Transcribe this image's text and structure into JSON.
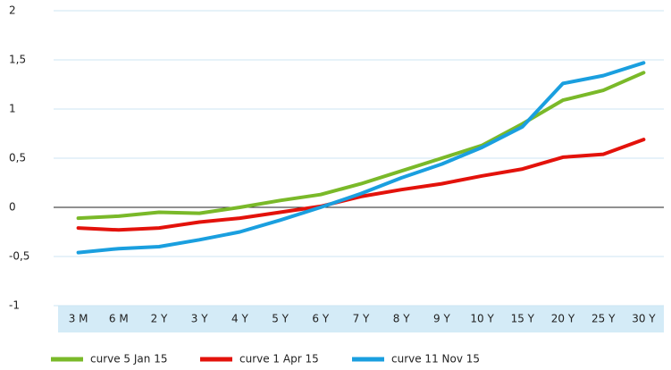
{
  "chart_data": {
    "type": "line",
    "categories": [
      "3 M",
      "6 M",
      "2 Y",
      "3 Y",
      "4 Y",
      "5 Y",
      "6 Y",
      "7 Y",
      "8 Y",
      "9 Y",
      "10 Y",
      "15 Y",
      "20 Y",
      "25 Y",
      "30 Y"
    ],
    "series": [
      {
        "name": "curve 5 Jan 15",
        "color": "#7ab929",
        "values": [
          -0.11,
          -0.09,
          -0.05,
          -0.06,
          0,
          0.07,
          0.13,
          0.24,
          0.37,
          0.5,
          0.63,
          0.85,
          1.09,
          1.19,
          1.37
        ]
      },
      {
        "name": "curve 1 Apr 15",
        "color": "#e3120b",
        "values": [
          -0.21,
          -0.23,
          -0.21,
          -0.15,
          -0.11,
          -0.05,
          0.01,
          0.11,
          0.18,
          0.24,
          0.32,
          0.39,
          0.51,
          0.54,
          0.69
        ]
      },
      {
        "name": "curve 11 Nov 15",
        "color": "#1a9fdf",
        "values": [
          -0.46,
          -0.42,
          -0.4,
          -0.33,
          -0.25,
          -0.13,
          0,
          0.14,
          0.3,
          0.44,
          0.61,
          0.82,
          1.26,
          1.34,
          1.47
        ]
      }
    ],
    "ylim": [
      -1,
      2
    ],
    "yticks": [
      -1,
      {
        "value": -0.5,
        "label": "-0,5"
      },
      0,
      {
        "value": 0.5,
        "label": "0,5"
      },
      1,
      {
        "value": 1.5,
        "label": "1,5"
      },
      2
    ],
    "grid": true,
    "legend": "bottom"
  }
}
